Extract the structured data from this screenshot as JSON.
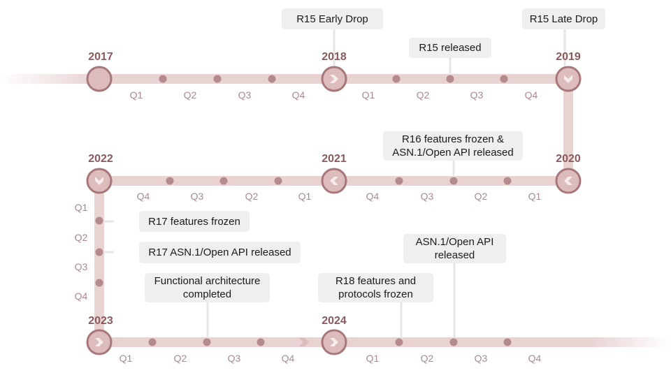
{
  "colors": {
    "track": "#e8d2d2",
    "track_fade": "#f4e6e6",
    "node": "#a8777a",
    "node_fill": "#dcbcbc",
    "dot": "#b58a8c",
    "year_text": "#8a5a5c",
    "quarter_text": "#a88a8c",
    "callout_bg": "#efefef",
    "callout_text": "#1a1a1a"
  },
  "years": [
    {
      "id": "2017",
      "label": "2017"
    },
    {
      "id": "2018",
      "label": "2018"
    },
    {
      "id": "2019",
      "label": "2019"
    },
    {
      "id": "2020",
      "label": "2020"
    },
    {
      "id": "2021",
      "label": "2021"
    },
    {
      "id": "2022",
      "label": "2022"
    },
    {
      "id": "2023",
      "label": "2023"
    },
    {
      "id": "2024",
      "label": "2024"
    }
  ],
  "quarters": {
    "row1_a": [
      "Q1",
      "Q2",
      "Q3",
      "Q4"
    ],
    "row1_b": [
      "Q1",
      "Q2",
      "Q3",
      "Q4"
    ],
    "row2_a": [
      "Q4",
      "Q3",
      "Q2",
      "Q1"
    ],
    "row2_b": [
      "Q4",
      "Q3",
      "Q2",
      "Q1"
    ],
    "col": [
      "Q1",
      "Q2",
      "Q3",
      "Q4"
    ],
    "row3_a": [
      "Q1",
      "Q2",
      "Q3",
      "Q4"
    ],
    "row3_b": [
      "Q1",
      "Q2",
      "Q3",
      "Q4"
    ]
  },
  "milestones": [
    {
      "id": "r15-early",
      "text": "R15 Early Drop"
    },
    {
      "id": "r15-late",
      "text": "R15 Late Drop"
    },
    {
      "id": "r15-released",
      "text": "R15 released"
    },
    {
      "id": "r16",
      "text": "R16 features frozen &\nASN.1/Open API released"
    },
    {
      "id": "r17-frozen",
      "text": "R17 features frozen"
    },
    {
      "id": "r17-asn",
      "text": "R17 ASN.1/Open API released"
    },
    {
      "id": "func-arch",
      "text": "Functional architecture\ncompleted"
    },
    {
      "id": "r18-frozen",
      "text": "R18 features and\nprotocols frozen"
    },
    {
      "id": "asn-open",
      "text": "ASN.1/Open API\nreleased"
    }
  ]
}
